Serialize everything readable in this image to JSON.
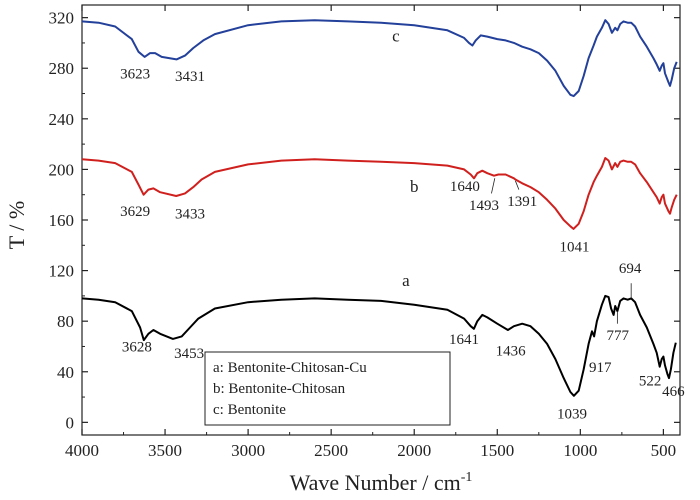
{
  "chart_data": {
    "type": "line",
    "title": "",
    "xlabel": "Wave Number / cm",
    "xlabel_sup": "-1",
    "ylabel": "T / %",
    "xlim": [
      4000,
      400
    ],
    "ylim": [
      -10,
      330
    ],
    "xticks": [
      4000,
      3500,
      3000,
      2500,
      2000,
      1500,
      1000,
      500
    ],
    "xtick_labels": [
      "4000",
      "3500",
      "3000",
      "2500",
      "2000",
      "1500",
      "1000",
      "500"
    ],
    "yticks": [
      0,
      40,
      80,
      120,
      160,
      200,
      240,
      280,
      320
    ],
    "ytick_labels": [
      "0",
      "40",
      "80",
      "120",
      "160",
      "200",
      "240",
      "280",
      "320"
    ],
    "grid": false,
    "legend": {
      "position": "lower-right",
      "entries": [
        "a:  Bentonite-Chitosan-Cu",
        "b:  Bentonite-Chitosan",
        "c:  Bentonite"
      ]
    },
    "series": [
      {
        "name": "a",
        "label": "a",
        "label_pos": [
          2050,
          108
        ],
        "color": "#000000",
        "points": [
          [
            4000,
            98
          ],
          [
            3900,
            97
          ],
          [
            3800,
            95
          ],
          [
            3700,
            88
          ],
          [
            3650,
            75
          ],
          [
            3628,
            65
          ],
          [
            3600,
            70
          ],
          [
            3570,
            73
          ],
          [
            3530,
            70
          ],
          [
            3453,
            66
          ],
          [
            3400,
            68
          ],
          [
            3350,
            75
          ],
          [
            3300,
            82
          ],
          [
            3200,
            90
          ],
          [
            3000,
            95
          ],
          [
            2800,
            97
          ],
          [
            2600,
            98
          ],
          [
            2400,
            97
          ],
          [
            2200,
            96
          ],
          [
            2000,
            93
          ],
          [
            1800,
            89
          ],
          [
            1700,
            82
          ],
          [
            1660,
            76
          ],
          [
            1641,
            74
          ],
          [
            1620,
            80
          ],
          [
            1590,
            85
          ],
          [
            1560,
            83
          ],
          [
            1500,
            78
          ],
          [
            1436,
            73
          ],
          [
            1400,
            76
          ],
          [
            1350,
            78
          ],
          [
            1300,
            76
          ],
          [
            1250,
            70
          ],
          [
            1200,
            62
          ],
          [
            1150,
            50
          ],
          [
            1100,
            35
          ],
          [
            1060,
            24
          ],
          [
            1039,
            21
          ],
          [
            1010,
            25
          ],
          [
            980,
            42
          ],
          [
            950,
            62
          ],
          [
            930,
            72
          ],
          [
            917,
            68
          ],
          [
            900,
            80
          ],
          [
            870,
            93
          ],
          [
            850,
            100
          ],
          [
            830,
            99
          ],
          [
            815,
            90
          ],
          [
            800,
            85
          ],
          [
            790,
            92
          ],
          [
            777,
            88
          ],
          [
            760,
            96
          ],
          [
            740,
            98
          ],
          [
            715,
            97
          ],
          [
            694,
            98
          ],
          [
            670,
            95
          ],
          [
            640,
            85
          ],
          [
            600,
            75
          ],
          [
            560,
            62
          ],
          [
            540,
            55
          ],
          [
            522,
            44
          ],
          [
            510,
            50
          ],
          [
            500,
            52
          ],
          [
            490,
            45
          ],
          [
            475,
            38
          ],
          [
            466,
            35
          ],
          [
            455,
            42
          ],
          [
            440,
            55
          ],
          [
            425,
            63
          ]
        ]
      },
      {
        "name": "b",
        "label": "b",
        "label_pos": [
          2000,
          182
        ],
        "color": "#d0201e",
        "points": [
          [
            4000,
            208
          ],
          [
            3900,
            207
          ],
          [
            3800,
            205
          ],
          [
            3700,
            198
          ],
          [
            3660,
            188
          ],
          [
            3629,
            180
          ],
          [
            3600,
            184
          ],
          [
            3570,
            185
          ],
          [
            3530,
            182
          ],
          [
            3433,
            179
          ],
          [
            3380,
            181
          ],
          [
            3330,
            186
          ],
          [
            3280,
            192
          ],
          [
            3200,
            198
          ],
          [
            3000,
            204
          ],
          [
            2800,
            207
          ],
          [
            2600,
            208
          ],
          [
            2400,
            207
          ],
          [
            2200,
            206
          ],
          [
            2000,
            205
          ],
          [
            1800,
            203
          ],
          [
            1700,
            200
          ],
          [
            1660,
            196
          ],
          [
            1640,
            193
          ],
          [
            1620,
            197
          ],
          [
            1590,
            199
          ],
          [
            1560,
            197
          ],
          [
            1520,
            195
          ],
          [
            1493,
            196
          ],
          [
            1450,
            196
          ],
          [
            1400,
            193
          ],
          [
            1391,
            192
          ],
          [
            1350,
            189
          ],
          [
            1300,
            186
          ],
          [
            1250,
            182
          ],
          [
            1200,
            176
          ],
          [
            1150,
            169
          ],
          [
            1100,
            160
          ],
          [
            1060,
            155
          ],
          [
            1041,
            153
          ],
          [
            1010,
            157
          ],
          [
            980,
            167
          ],
          [
            950,
            180
          ],
          [
            920,
            190
          ],
          [
            900,
            195
          ],
          [
            870,
            202
          ],
          [
            850,
            209
          ],
          [
            830,
            207
          ],
          [
            810,
            200
          ],
          [
            790,
            205
          ],
          [
            777,
            202
          ],
          [
            760,
            206
          ],
          [
            740,
            207
          ],
          [
            715,
            206
          ],
          [
            694,
            206
          ],
          [
            670,
            204
          ],
          [
            640,
            197
          ],
          [
            600,
            190
          ],
          [
            560,
            182
          ],
          [
            540,
            178
          ],
          [
            522,
            173
          ],
          [
            510,
            178
          ],
          [
            500,
            180
          ],
          [
            490,
            173
          ],
          [
            470,
            167
          ],
          [
            460,
            165
          ],
          [
            450,
            170
          ],
          [
            435,
            176
          ],
          [
            420,
            180
          ]
        ]
      },
      {
        "name": "c",
        "label": "c",
        "label_pos": [
          2110,
          301
        ],
        "color": "#23409a",
        "points": [
          [
            4000,
            317
          ],
          [
            3900,
            316
          ],
          [
            3800,
            313
          ],
          [
            3700,
            303
          ],
          [
            3660,
            293
          ],
          [
            3623,
            289
          ],
          [
            3590,
            292
          ],
          [
            3560,
            292
          ],
          [
            3520,
            289
          ],
          [
            3431,
            287
          ],
          [
            3380,
            290
          ],
          [
            3330,
            296
          ],
          [
            3270,
            302
          ],
          [
            3200,
            307
          ],
          [
            3000,
            314
          ],
          [
            2800,
            317
          ],
          [
            2600,
            318
          ],
          [
            2400,
            317
          ],
          [
            2200,
            316
          ],
          [
            2000,
            314
          ],
          [
            1800,
            310
          ],
          [
            1700,
            304
          ],
          [
            1670,
            300
          ],
          [
            1650,
            298
          ],
          [
            1630,
            302
          ],
          [
            1600,
            306
          ],
          [
            1560,
            305
          ],
          [
            1500,
            303
          ],
          [
            1450,
            302
          ],
          [
            1400,
            300
          ],
          [
            1350,
            297
          ],
          [
            1300,
            295
          ],
          [
            1250,
            292
          ],
          [
            1200,
            286
          ],
          [
            1150,
            278
          ],
          [
            1100,
            266
          ],
          [
            1060,
            259
          ],
          [
            1040,
            258
          ],
          [
            1010,
            262
          ],
          [
            980,
            274
          ],
          [
            950,
            288
          ],
          [
            920,
            298
          ],
          [
            900,
            305
          ],
          [
            870,
            312
          ],
          [
            850,
            318
          ],
          [
            830,
            315
          ],
          [
            810,
            308
          ],
          [
            790,
            312
          ],
          [
            777,
            310
          ],
          [
            760,
            315
          ],
          [
            740,
            317
          ],
          [
            715,
            316
          ],
          [
            694,
            316
          ],
          [
            670,
            313
          ],
          [
            640,
            305
          ],
          [
            600,
            297
          ],
          [
            560,
            288
          ],
          [
            540,
            283
          ],
          [
            522,
            278
          ],
          [
            510,
            282
          ],
          [
            500,
            284
          ],
          [
            490,
            276
          ],
          [
            470,
            269
          ],
          [
            460,
            266
          ],
          [
            450,
            271
          ],
          [
            435,
            280
          ],
          [
            420,
            285
          ]
        ]
      }
    ],
    "annotations": [
      {
        "text": "3623",
        "x": 3680,
        "y": 272
      },
      {
        "text": "3431",
        "x": 3350,
        "y": 270
      },
      {
        "text": "3629",
        "x": 3680,
        "y": 163
      },
      {
        "text": "3433",
        "x": 3350,
        "y": 161
      },
      {
        "text": "1640",
        "x": 1695,
        "y": 183
      },
      {
        "text": "1493",
        "x": 1580,
        "y": 168,
        "leader": [
          1515,
          193,
          1535,
          181
        ]
      },
      {
        "text": "1391",
        "x": 1350,
        "y": 171,
        "leader": [
          1391,
          191,
          1370,
          184
        ]
      },
      {
        "text": "1041",
        "x": 1035,
        "y": 135
      },
      {
        "text": "3628",
        "x": 3670,
        "y": 56
      },
      {
        "text": "3453",
        "x": 3355,
        "y": 51
      },
      {
        "text": "1641",
        "x": 1700,
        "y": 62
      },
      {
        "text": "1436",
        "x": 1420,
        "y": 53
      },
      {
        "text": "1039",
        "x": 1050,
        "y": 3
      },
      {
        "text": "917",
        "x": 880,
        "y": 40
      },
      {
        "text": "777",
        "x": 775,
        "y": 65,
        "leader": [
          777,
          88,
          777,
          78
        ]
      },
      {
        "text": "694",
        "x": 700,
        "y": 118,
        "leader": [
          694,
          98,
          694,
          110
        ]
      },
      {
        "text": "522",
        "x": 580,
        "y": 29
      },
      {
        "text": "466",
        "x": 440,
        "y": 21
      }
    ]
  }
}
